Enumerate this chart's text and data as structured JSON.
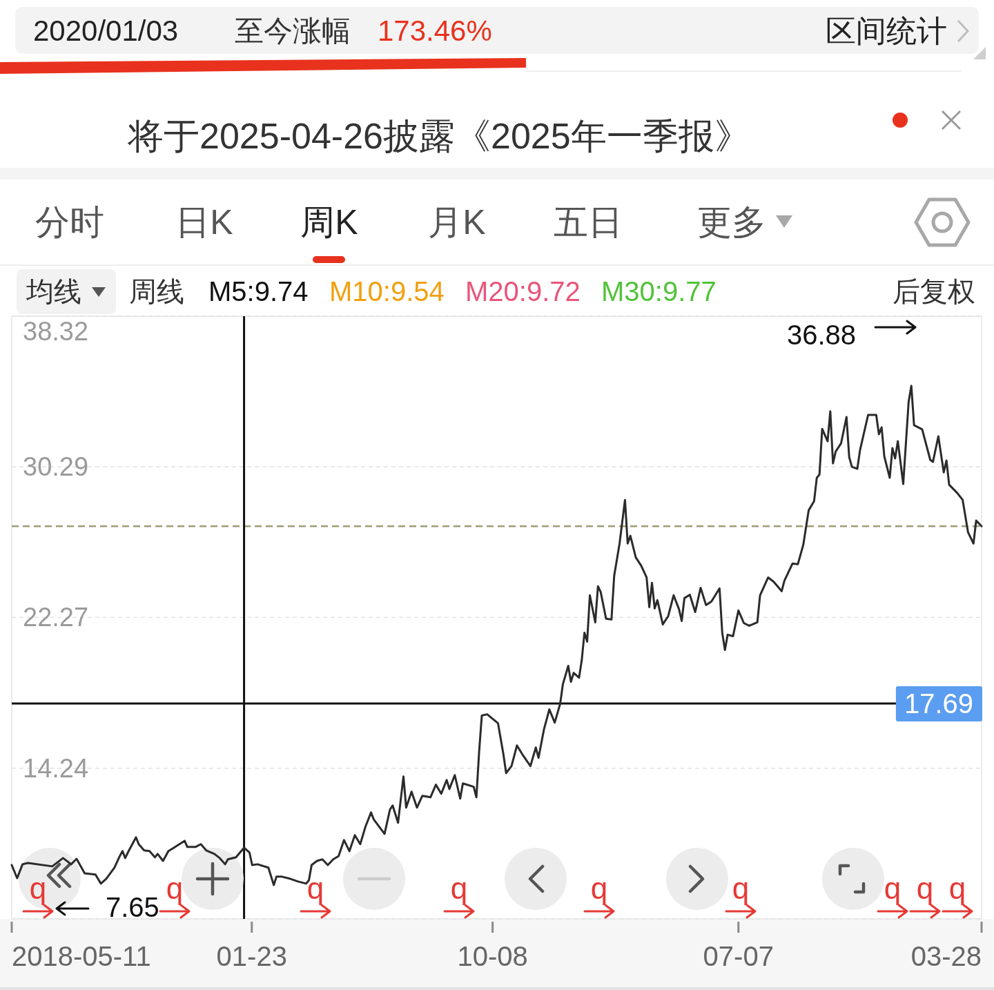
{
  "chart_data": {
    "type": "line",
    "color": "#2b2b2b",
    "x": [
      "2018-05-11",
      "2018-05-25",
      "2018-06-08",
      "2018-06-22",
      "2018-08-24",
      "2018-09-21",
      "2018-10-12",
      "2018-10-26",
      "2018-11-16",
      "2018-12-14",
      "2018-12-28",
      "2019-01-11",
      "2019-02-01",
      "2019-02-15",
      "2019-02-22",
      "2019-03-01",
      "2019-03-08",
      "2019-03-29",
      "2019-04-05",
      "2019-04-19",
      "2019-05-03",
      "2019-05-17",
      "2019-05-24",
      "2019-06-07",
      "2019-06-21",
      "2019-07-05",
      "2019-08-02",
      "2019-08-09",
      "2019-08-30",
      "2019-09-13",
      "2019-09-27",
      "2019-10-18",
      "2019-11-01",
      "2019-11-15",
      "2019-11-22",
      "2019-12-13",
      "2020-01-03",
      "2020-01-17",
      "2020-01-24",
      "2020-02-07",
      "2020-03-06",
      "2020-03-20",
      "2020-03-27",
      "2020-04-10",
      "2020-05-01",
      "2020-05-22",
      "2020-06-12",
      "2020-06-19",
      "2020-06-26",
      "2020-07-10",
      "2020-07-24",
      "2020-08-07",
      "2020-08-21",
      "2020-09-04",
      "2020-09-18",
      "2020-10-02",
      "2020-10-16",
      "2020-10-30",
      "2020-11-13",
      "2020-11-27",
      "2020-12-04",
      "2021-01-01",
      "2021-01-15",
      "2021-01-22",
      "2021-02-05",
      "2021-02-19",
      "2021-02-26",
      "2021-03-12",
      "2021-03-26",
      "2021-04-09",
      "2021-04-30",
      "2021-05-14",
      "2021-05-28",
      "2021-06-11",
      "2021-06-18",
      "2021-07-02",
      "2021-07-16",
      "2021-07-23",
      "2021-08-20",
      "2021-08-27",
      "2021-09-03",
      "2021-09-10",
      "2021-09-24",
      "2021-10-22",
      "2021-11-05",
      "2021-11-12",
      "2021-11-26",
      "2021-12-10",
      "2021-12-24",
      "2022-01-14",
      "2022-01-28",
      "2022-02-04",
      "2022-02-18",
      "2022-03-04",
      "2022-03-18",
      "2022-04-01",
      "2022-04-08",
      "2022-04-22",
      "2022-04-29",
      "2022-05-06",
      "2022-05-20",
      "2022-05-27",
      "2022-06-03",
      "2022-06-10",
      "2022-06-17",
      "2022-07-01",
      "2022-07-08",
      "2022-07-15",
      "2022-07-29",
      "2022-08-12",
      "2022-08-19",
      "2022-09-02",
      "2022-09-16",
      "2022-09-23",
      "2022-09-30",
      "2022-10-14",
      "2022-10-28",
      "2022-11-11",
      "2022-11-18",
      "2022-11-25",
      "2022-12-02",
      "2022-12-09",
      "2022-12-23",
      "2023-01-06",
      "2023-01-20",
      "2023-02-03",
      "2023-02-10",
      "2023-02-17",
      "2023-03-03",
      "2023-03-17",
      "2023-03-31",
      "2023-04-14",
      "2023-04-28",
      "2023-05-19",
      "2023-05-26",
      "2023-06-02",
      "2023-06-09",
      "2023-06-23",
      "2023-07-07",
      "2023-07-21",
      "2023-08-04",
      "2023-08-25",
      "2023-09-01",
      "2023-09-22",
      "2023-10-06",
      "2023-10-27",
      "2023-11-03",
      "2023-11-24",
      "2023-12-08",
      "2023-12-22",
      "2024-01-05",
      "2024-01-19",
      "2024-01-26",
      "2024-02-02",
      "2024-02-09",
      "2024-02-23",
      "2024-03-01",
      "2024-03-08",
      "2024-03-15",
      "2024-03-29",
      "2024-04-12",
      "2024-04-19",
      "2024-04-26",
      "2024-05-10",
      "2024-05-17",
      "2024-06-07",
      "2024-06-28",
      "2024-07-05",
      "2024-07-12",
      "2024-07-19",
      "2024-08-02",
      "2024-08-09",
      "2024-08-16",
      "2024-08-23",
      "2024-09-06",
      "2024-09-20",
      "2024-09-27",
      "2024-10-04",
      "2024-10-25",
      "2024-11-15",
      "2024-11-22",
      "2024-12-06",
      "2024-12-20",
      "2024-12-27",
      "2025-01-03",
      "2025-01-24",
      "2025-02-07",
      "2025-02-21",
      "2025-03-07",
      "2025-03-14",
      "2025-03-28"
    ],
    "values": [
      9.08,
      8.38,
      9.12,
      9.19,
      9.01,
      9.45,
      9.12,
      9.41,
      8.64,
      8.57,
      8.09,
      8.35,
      8.94,
      9.56,
      9.82,
      9.45,
      9.75,
      10.56,
      10.19,
      9.86,
      9.82,
      9.49,
      9.67,
      9.3,
      9.82,
      10.0,
      10.37,
      10.04,
      10.04,
      10.19,
      9.86,
      9.67,
      9.45,
      9.12,
      9.38,
      9.49,
      10.0,
      9.75,
      9.08,
      9.12,
      8.94,
      8.01,
      8.46,
      8.46,
      8.35,
      8.2,
      8.09,
      8.27,
      9.08,
      9.3,
      9.38,
      9.08,
      9.38,
      9.56,
      10.41,
      9.82,
      10.67,
      10.19,
      11.15,
      11.88,
      11.51,
      10.74,
      12.03,
      12.25,
      11.33,
      13.8,
      12.14,
      12.99,
      12.14,
      12.77,
      12.69,
      13.36,
      12.88,
      13.61,
      13.13,
      13.87,
      12.62,
      13.43,
      13.25,
      12.69,
      15.09,
      17.04,
      17.11,
      16.63,
      14.98,
      13.98,
      14.35,
      15.45,
      14.98,
      14.35,
      15.34,
      14.79,
      16.3,
      17.37,
      16.67,
      17.66,
      18.7,
      19.69,
      18.84,
      19.32,
      19.06,
      19.99,
      21.46,
      20.98,
      23.45,
      22.01,
      23.93,
      23.63,
      22.2,
      22.16,
      24.48,
      26.21,
      28.53,
      26.21,
      26.62,
      25.47,
      25.03,
      24.4,
      22.82,
      24.11,
      22.75,
      23.19,
      21.9,
      22.34,
      23.45,
      22.71,
      22.08,
      23.3,
      23.48,
      22.56,
      23.85,
      22.93,
      23.12,
      23.82,
      21.46,
      20.54,
      21.35,
      21.27,
      22.64,
      21.97,
      21.83,
      22.01,
      23.45,
      24.4,
      24.18,
      23.67,
      24.22,
      25.14,
      25.11,
      26.14,
      27.98,
      28.46,
      29.71,
      29.89,
      32.32,
      31.66,
      33.25,
      30.48,
      31.11,
      31.55,
      32.95,
      30.81,
      30.3,
      30.19,
      31.18,
      33.06,
      33.06,
      32.03,
      32.4,
      30.85,
      29.71,
      31.29,
      30.74,
      31.66,
      29.38,
      33.76,
      34.61,
      32.51,
      32.29,
      30.67,
      30.56,
      31.92,
      30.0,
      30.63,
      29.34,
      28.9,
      28.53,
      26.8,
      26.21,
      27.43,
      27.13
    ],
    "xlim": [
      "2018-05-11",
      "2025-03-28"
    ],
    "xticks": [
      {
        "value": "2018-05-11",
        "label": "2018-05-11"
      },
      {
        "value": "2020-01-23",
        "label": "01-23"
      },
      {
        "value": "2021-10-08",
        "label": "10-08"
      },
      {
        "value": "2023-07-07",
        "label": "07-07"
      },
      {
        "value": "2025-03-28",
        "label": "03-28"
      }
    ],
    "ylim": [
      6.21,
      38.32
    ],
    "yticks": [
      {
        "value": 6.21,
        "label": null
      },
      14.24,
      22.27,
      30.29,
      38.32
    ],
    "grid": "y",
    "ref_lines": [
      {
        "axis": "y",
        "value": 27.13,
        "color": "#9c9c78",
        "line_style": "dashed"
      },
      {
        "axis": "x",
        "value": "2020-01-03",
        "color": "#111111"
      },
      {
        "axis": "y",
        "value": 17.69,
        "label": "17.69",
        "color": "#111111"
      }
    ],
    "annotations": [
      "2020/01/03",
      "至今涨幅",
      "173.46%",
      "区间统计",
      "将于2025-04-26披露《2025年一季报》",
      "分时",
      "日K",
      "周K",
      "月K",
      "五日",
      "更多",
      "均线",
      "周线",
      "M5:9.74",
      "M10:9.54",
      "M20:9.72",
      "M30:9.77",
      "后复权",
      "36.88",
      "7.65",
      "q",
      "q",
      "q",
      "q",
      "q",
      "q",
      "q",
      "q",
      "q"
    ]
  }
}
